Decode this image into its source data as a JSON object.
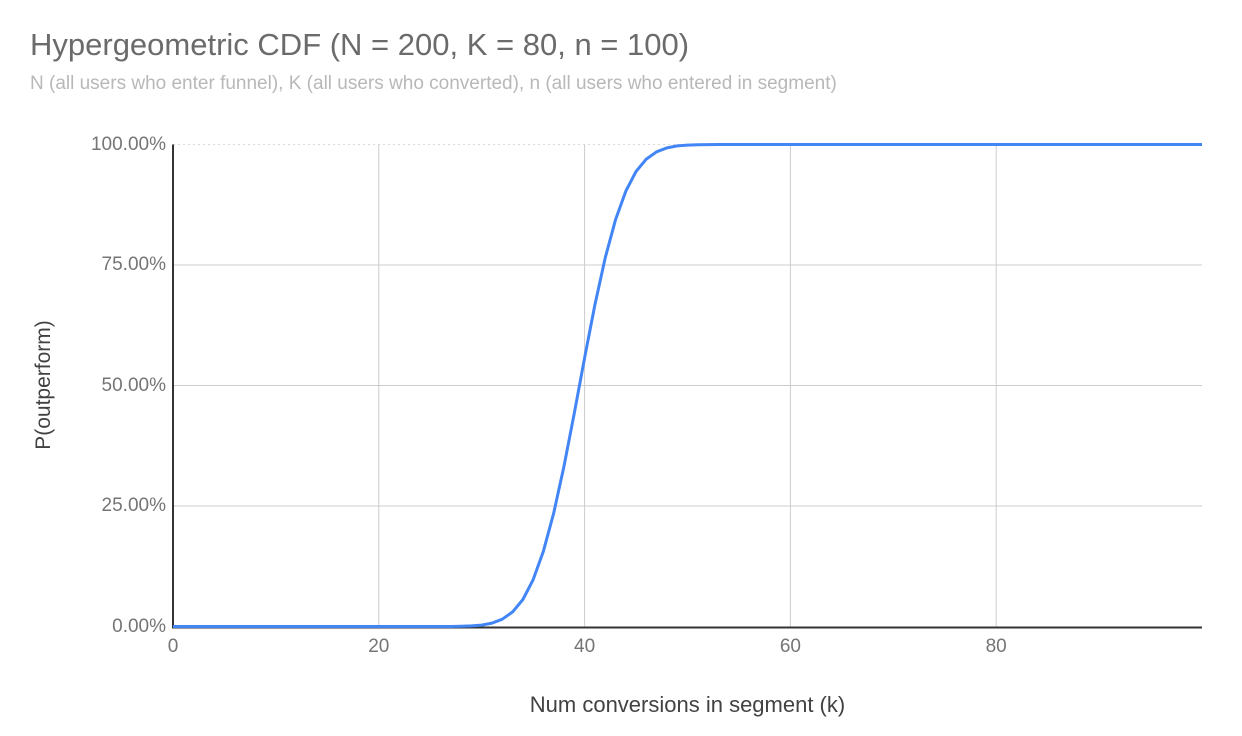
{
  "colors": {
    "background": "#ffffff",
    "series_blue": "#4285f4",
    "gridline": "#cccccc",
    "gridline_top_dotted": "#d9d9d9",
    "axis_line": "#333333",
    "title_text": "#6b6b6b",
    "subtitle_text": "#b8b8b8",
    "tick_text": "#757575",
    "axis_title_text": "#424242"
  },
  "chart_data": {
    "type": "line",
    "title": "Hypergeometric CDF (N = 200, K = 80, n = 100)",
    "subtitle": "N (all users who enter funnel), K (all users who converted), n (all users who entered in segment)",
    "xlabel": "Num conversions in segment (k)",
    "ylabel": "P(outperform)",
    "xlim": [
      0,
      100
    ],
    "ylim": [
      0,
      1
    ],
    "x_ticks": [
      0,
      20,
      40,
      60,
      80
    ],
    "y_ticks": [
      {
        "value": 0,
        "label": "0.00%"
      },
      {
        "value": 0.25,
        "label": "25.00%"
      },
      {
        "value": 0.5,
        "label": "50.00%"
      },
      {
        "value": 0.75,
        "label": "75.00%"
      },
      {
        "value": 1,
        "label": "100.00%"
      }
    ],
    "grid": true,
    "legend": "none",
    "series": [
      {
        "name": "P(outperform)",
        "color": "#4285f4",
        "x": [
          0,
          1,
          2,
          3,
          4,
          5,
          6,
          7,
          8,
          9,
          10,
          11,
          12,
          13,
          14,
          15,
          16,
          17,
          18,
          19,
          20,
          21,
          22,
          23,
          24,
          25,
          26,
          27,
          28,
          29,
          30,
          31,
          32,
          33,
          34,
          35,
          36,
          37,
          38,
          39,
          40,
          41,
          42,
          43,
          44,
          45,
          46,
          47,
          48,
          49,
          50,
          51,
          52,
          53,
          54,
          55,
          56,
          57,
          58,
          59,
          60,
          61,
          62,
          63,
          64,
          65,
          66,
          67,
          68,
          69,
          70,
          71,
          72,
          73,
          74,
          75,
          76,
          77,
          78,
          79,
          80,
          81,
          82,
          83,
          84,
          85,
          86,
          87,
          88,
          89,
          90,
          91,
          92,
          93,
          94,
          95,
          96,
          97,
          98,
          99,
          100
        ],
        "y": [
          0,
          0,
          0,
          0,
          0,
          0,
          0,
          0,
          0,
          0,
          0,
          0,
          0,
          0,
          0,
          0,
          0,
          0,
          0,
          0,
          0,
          0,
          0,
          0,
          0,
          1e-05,
          4e-05,
          0.0001,
          0.0004,
          0.0012,
          0.003,
          0.007,
          0.0151,
          0.0302,
          0.0561,
          0.0969,
          0.1562,
          0.2353,
          0.3326,
          0.4427,
          0.5573,
          0.6674,
          0.7647,
          0.8438,
          0.9031,
          0.9439,
          0.9698,
          0.9849,
          0.993,
          0.997,
          0.9988,
          0.9995,
          0.9998,
          0.9999,
          1,
          1,
          1,
          1,
          1,
          1,
          1,
          1,
          1,
          1,
          1,
          1,
          1,
          1,
          1,
          1,
          1,
          1,
          1,
          1,
          1,
          1,
          1,
          1,
          1,
          1,
          1,
          1,
          1,
          1,
          1,
          1,
          1,
          1,
          1,
          1,
          1,
          1,
          1,
          1,
          1,
          1,
          1,
          1,
          1,
          1,
          1
        ]
      }
    ]
  }
}
